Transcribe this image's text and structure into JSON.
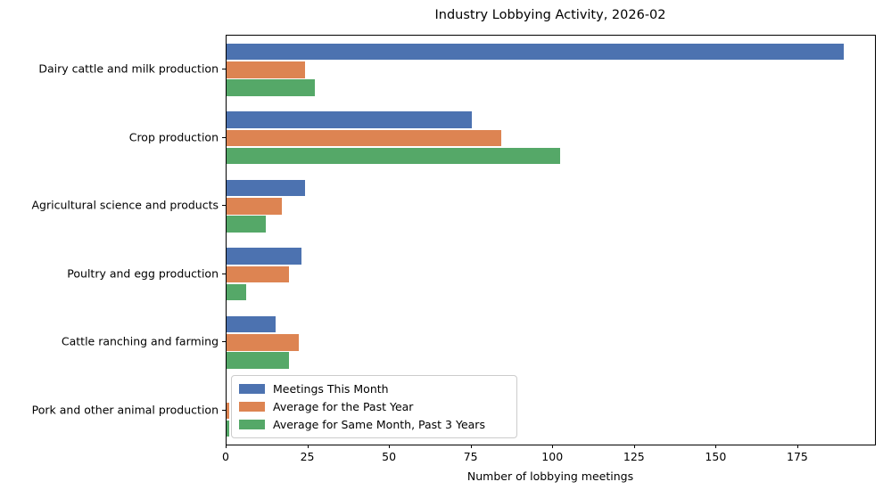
{
  "chart_data": {
    "type": "bar",
    "orientation": "horizontal",
    "title": "Industry Lobbying Activity, 2026-02",
    "xlabel": "Number of lobbying meetings",
    "ylabel": "",
    "categories": [
      "Dairy cattle and milk production",
      "Crop production",
      "Agricultural science and products",
      "Poultry and egg production",
      "Cattle ranching and farming",
      "Pork and other animal production"
    ],
    "series": [
      {
        "name": "Meetings This Month",
        "color": "#4C72B0",
        "values": [
          189,
          75,
          24,
          23,
          15,
          0
        ]
      },
      {
        "name": "Average for the Past Year",
        "color": "#DD8452",
        "values": [
          24,
          84,
          17,
          19,
          22,
          0.7
        ]
      },
      {
        "name": "Average for Same Month, Past 3 Years",
        "color": "#55A868",
        "values": [
          27,
          102,
          12,
          6,
          19,
          0.7
        ]
      }
    ],
    "xlim": [
      0,
      198.5
    ],
    "xticks": [
      0,
      25,
      50,
      75,
      100,
      125,
      150,
      175
    ],
    "grid": false,
    "legend_position": "lower left",
    "axis_color": "#000000",
    "background_color": "#ffffff"
  }
}
